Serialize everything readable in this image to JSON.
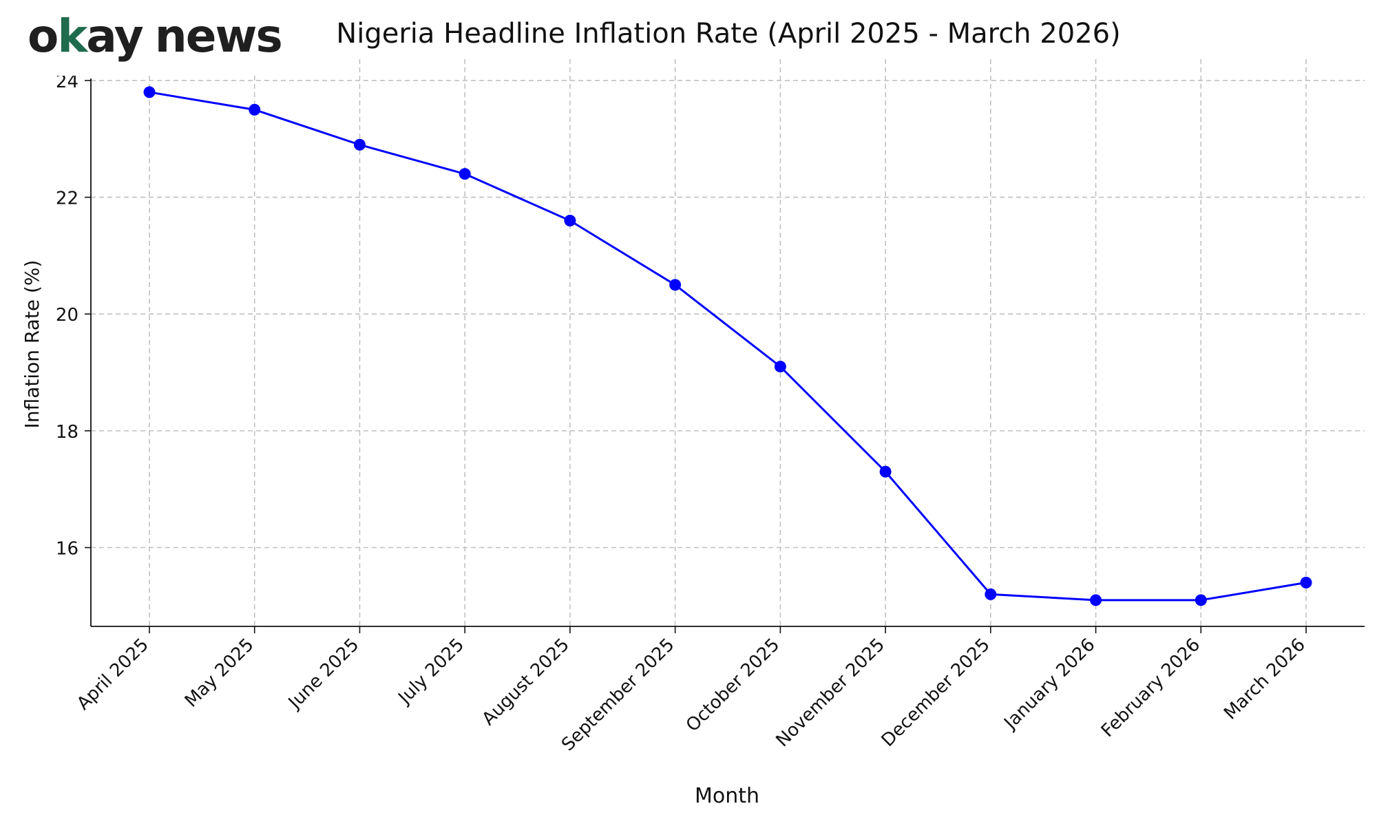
{
  "logo": {
    "text": "okay news",
    "part_a": "o",
    "part_k": "k",
    "part_b": "ay",
    "part_c": "news",
    "accent": "#1e6b4d",
    "dark": "#1f1f1f"
  },
  "chart_data": {
    "type": "line",
    "title": "Nigeria Headline Inflation Rate (April 2025 - March 2026)",
    "xlabel": "Month",
    "ylabel": "Inflation Rate (%)",
    "categories": [
      "April 2025",
      "May 2025",
      "June 2025",
      "July 2025",
      "August 2025",
      "September 2025",
      "October 2025",
      "November 2025",
      "December 2025",
      "January 2026",
      "February 2026",
      "March 2026"
    ],
    "series": [
      {
        "values": [
          23.8,
          23.5,
          22.9,
          22.4,
          21.6,
          20.5,
          19.1,
          17.3,
          15.2,
          15.1,
          15.1,
          15.4
        ],
        "color": "#0000ff",
        "marker": "circle"
      }
    ],
    "yticks": [
      16,
      18,
      20,
      22,
      24
    ],
    "ylim": [
      14.65,
      24.2
    ],
    "grid": true,
    "grid_style": "dashed",
    "grid_color": "#c0c0c0"
  }
}
